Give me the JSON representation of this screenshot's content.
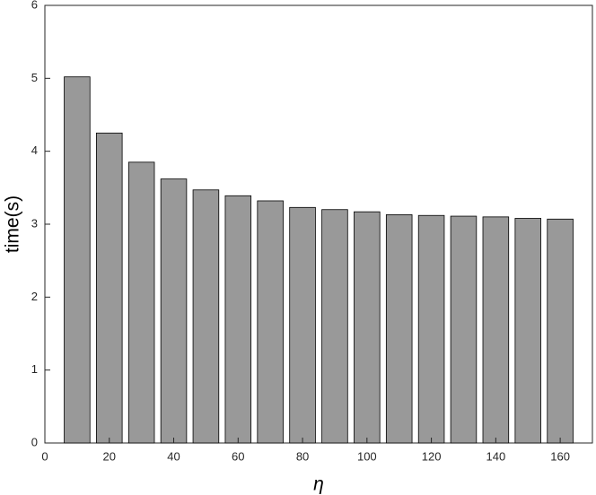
{
  "chart_data": {
    "type": "bar",
    "x": [
      10,
      20,
      30,
      40,
      50,
      60,
      70,
      80,
      90,
      100,
      110,
      120,
      130,
      140,
      150,
      160
    ],
    "values": [
      5.02,
      4.25,
      3.85,
      3.62,
      3.47,
      3.39,
      3.32,
      3.23,
      3.2,
      3.17,
      3.13,
      3.12,
      3.11,
      3.1,
      3.08,
      3.07
    ],
    "color": "#999999",
    "xlabel": "η",
    "ylabel": "time(s)",
    "xlim": [
      0,
      170
    ],
    "xticks": [
      0,
      20,
      40,
      60,
      80,
      100,
      120,
      140,
      160
    ],
    "ylim": [
      0,
      6
    ],
    "yticks": [
      0,
      1,
      2,
      3,
      4,
      5,
      6
    ]
  }
}
